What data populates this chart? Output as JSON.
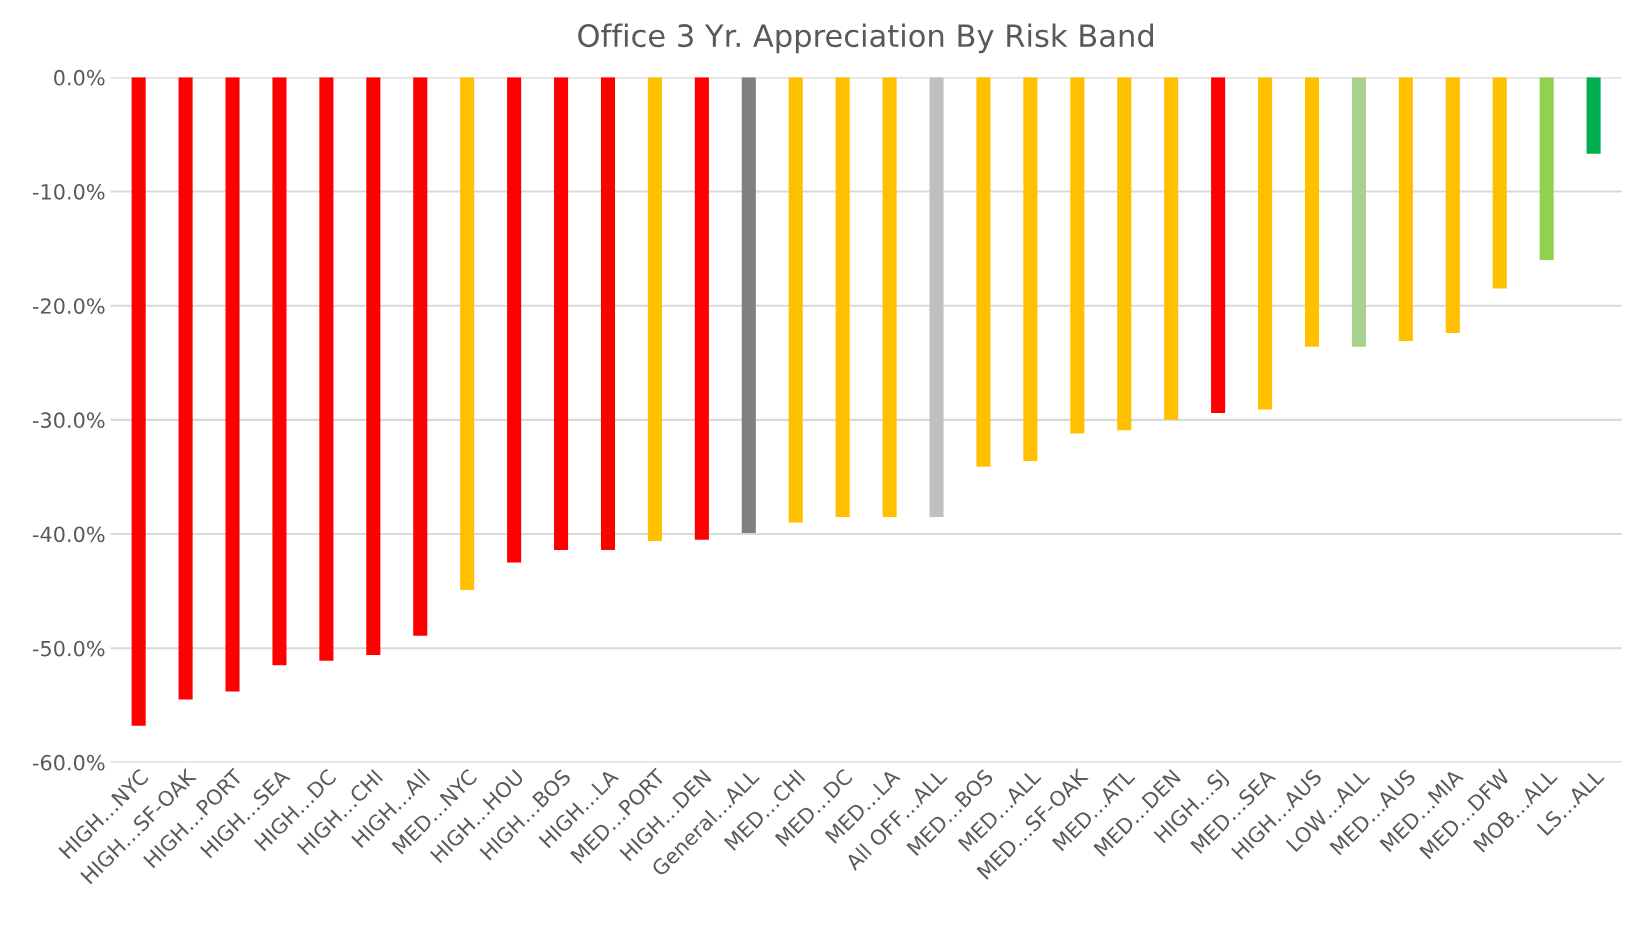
{
  "chart_data": {
    "type": "bar",
    "title": "Office 3 Yr. Appreciation By Risk Band",
    "categories": [
      "HIGH…NYC",
      "HIGH…SF-OAK",
      "HIGH…PORT",
      "HIGH…SEA",
      "HIGH…DC",
      "HIGH…CHI",
      "HIGH…All",
      "MED…NYC",
      "HIGH…HOU",
      "HIGH…BOS",
      "HIGH…LA",
      "MED…PORT",
      "HIGH…DEN",
      "General…ALL",
      "MED…CHI",
      "MED…DC",
      "MED…LA",
      "All OFF…ALL",
      "MED…BOS",
      "MED…ALL",
      "MED…SF-OAK",
      "MED…ATL",
      "MED…DEN",
      "HIGH…SJ",
      "MED…SEA",
      "HIGH…AUS",
      "LOW…ALL",
      "MED…AUS",
      "MED…MIA",
      "MED…DFW",
      "MOB…ALL",
      "LS…ALL"
    ],
    "values": [
      -56.8,
      -54.5,
      -53.8,
      -51.5,
      -51.1,
      -50.6,
      -48.9,
      -44.9,
      -42.5,
      -41.4,
      -41.4,
      -40.6,
      -40.5,
      -39.9,
      -39.0,
      -38.5,
      -38.5,
      -38.5,
      -34.1,
      -33.6,
      -31.2,
      -30.9,
      -30.0,
      -29.4,
      -29.1,
      -23.6,
      -23.6,
      -23.1,
      -22.4,
      -18.5,
      -16.0,
      -6.7
    ],
    "colors": [
      "#ff0000",
      "#ff0000",
      "#ff0000",
      "#ff0000",
      "#ff0000",
      "#ff0000",
      "#ff0000",
      "#ffc000",
      "#ff0000",
      "#ff0000",
      "#ff0000",
      "#ffc000",
      "#ff0000",
      "#808080",
      "#ffc000",
      "#ffc000",
      "#ffc000",
      "#bfbfbf",
      "#ffc000",
      "#ffc000",
      "#ffc000",
      "#ffc000",
      "#ffc000",
      "#ff0000",
      "#ffc000",
      "#ffc000",
      "#a9d18e",
      "#ffc000",
      "#ffc000",
      "#ffc000",
      "#92d050",
      "#00b050"
    ],
    "ylim": [
      -60,
      0
    ],
    "yticks": [
      {
        "value": 0,
        "label": "0.0%"
      },
      {
        "value": -10,
        "label": "-10.0%"
      },
      {
        "value": -20,
        "label": "-20.0%"
      },
      {
        "value": -30,
        "label": "-30.0%"
      },
      {
        "value": -40,
        "label": "-40.0%"
      },
      {
        "value": -50,
        "label": "-50.0%"
      },
      {
        "value": -60,
        "label": "-60.0%"
      }
    ],
    "grid": "y"
  }
}
